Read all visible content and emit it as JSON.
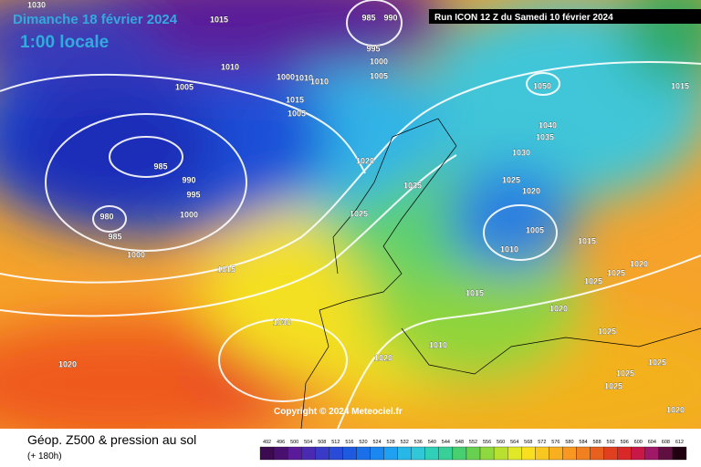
{
  "header": {
    "date": "Dimanche 18 février 2024",
    "time": "1:00 locale",
    "run": "Run ICON 12 Z du Samedi 10 février 2024",
    "copyright": "Copyright © 2024 Meteociel.fr"
  },
  "footer": {
    "title": "Géop. Z500 & pression au sol",
    "lead": "(+ 180h)"
  },
  "legend": {
    "levels": [
      492,
      496,
      500,
      504,
      508,
      512,
      516,
      520,
      524,
      528,
      532,
      536,
      540,
      544,
      548,
      552,
      556,
      560,
      564,
      568,
      572,
      576,
      580,
      584,
      588,
      592,
      596,
      600,
      604,
      608,
      612
    ]
  },
  "isobar_labels": [
    "1030",
    "1015",
    "985",
    "990",
    "995",
    "1000",
    "1005",
    "1010",
    "1005",
    "1000",
    "1010",
    "1010",
    "1015",
    "1005",
    "985",
    "990",
    "995",
    "1000",
    "980",
    "985",
    "1000",
    "1015",
    "1020",
    "1025",
    "1035",
    "1050",
    "1040",
    "1035",
    "1030",
    "1025",
    "1020",
    "1005",
    "1010",
    "1015",
    "1015",
    "1010",
    "1020",
    "1030",
    "1020",
    "1025",
    "1020",
    "1025",
    "1025",
    "1025",
    "1025",
    "1020",
    "1015",
    "1020",
    "1025"
  ]
}
